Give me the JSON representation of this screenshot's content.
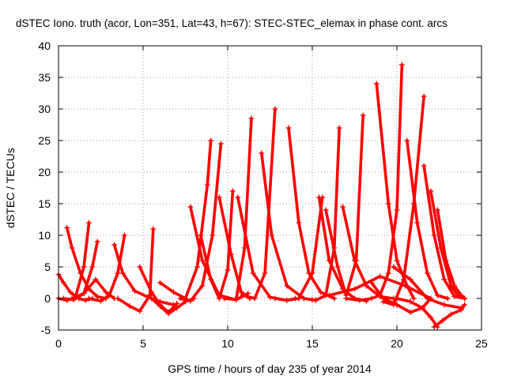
{
  "chart_data": {
    "type": "scatter",
    "title": "dSTEC Iono. truth (acor, Lon=351, Lat=43, h=67): STEC-STEC_elemax in phase cont. arcs",
    "xlabel": "GPS time / hours of day 235 of year 2014",
    "ylabel": "dSTEC  / TECUs",
    "xlim": [
      0,
      25
    ],
    "ylim": [
      -5,
      40
    ],
    "xticks": [
      0,
      5,
      10,
      15,
      20,
      25
    ],
    "yticks": [
      -5,
      0,
      5,
      10,
      15,
      20,
      25,
      30,
      35,
      40
    ],
    "grid": true,
    "marker": "plus",
    "color": "#ff0000",
    "series": [
      {
        "x": [
          0.0,
          0.3,
          0.7,
          1.2,
          1.6,
          2.0
        ],
        "y": [
          3.8,
          2.5,
          1.0,
          0.0,
          -0.3,
          0.0
        ]
      },
      {
        "x": [
          0.0,
          0.5,
          1.0,
          1.5,
          1.8
        ],
        "y": [
          0.0,
          -0.3,
          0.2,
          5.0,
          12.0
        ]
      },
      {
        "x": [
          0.5,
          0.8,
          1.3,
          1.8,
          2.3,
          2.8
        ],
        "y": [
          11.2,
          8.0,
          4.0,
          1.5,
          0.3,
          0.0
        ]
      },
      {
        "x": [
          0.3,
          0.9,
          1.5,
          2.0,
          2.3
        ],
        "y": [
          0.0,
          -0.2,
          0.8,
          5.0,
          9.0
        ]
      },
      {
        "x": [
          0.8,
          1.5,
          2.2,
          2.8,
          3.3
        ],
        "y": [
          0.0,
          0.8,
          3.0,
          1.0,
          0.0
        ]
      },
      {
        "x": [
          1.8,
          2.5,
          3.0,
          3.5,
          3.9
        ],
        "y": [
          0.0,
          -0.4,
          0.5,
          4.0,
          10.0
        ]
      },
      {
        "x": [
          3.3,
          3.8,
          4.5,
          5.3,
          6.0,
          6.8
        ],
        "y": [
          8.5,
          4.0,
          1.2,
          0.2,
          -0.5,
          -1.0
        ]
      },
      {
        "x": [
          3.5,
          4.2,
          4.8,
          5.4,
          5.6
        ],
        "y": [
          0.0,
          -1.2,
          -2.0,
          0.5,
          11.0
        ]
      },
      {
        "x": [
          4.8,
          5.5,
          6.0,
          6.5,
          7.0
        ],
        "y": [
          5.0,
          1.0,
          -1.0,
          -2.2,
          -0.8
        ]
      },
      {
        "x": [
          5.5,
          6.0,
          6.5,
          7.0,
          7.5,
          8.0
        ],
        "y": [
          0.0,
          -1.2,
          -2.4,
          -1.5,
          -0.5,
          0.0
        ]
      },
      {
        "x": [
          6.0,
          6.8,
          7.5,
          8.2,
          8.8,
          9.0
        ],
        "y": [
          2.5,
          1.0,
          0.0,
          5.0,
          18.0,
          25.0
        ]
      },
      {
        "x": [
          7.2,
          7.8,
          8.5,
          9.1,
          9.6
        ],
        "y": [
          0.0,
          -0.4,
          2.0,
          10.0,
          24.5
        ]
      },
      {
        "x": [
          7.8,
          8.5,
          9.5,
          10.5,
          11.2
        ],
        "y": [
          14.5,
          6.0,
          0.5,
          -0.2,
          0.8
        ]
      },
      {
        "x": [
          8.4,
          9.0,
          9.5,
          10.0,
          10.3
        ],
        "y": [
          10.0,
          3.0,
          0.0,
          4.5,
          17.0
        ]
      },
      {
        "x": [
          9.5,
          10.2,
          10.8,
          11.3
        ],
        "y": [
          16.0,
          7.0,
          1.0,
          0.0
        ]
      },
      {
        "x": [
          9.8,
          10.5,
          11.0,
          11.4
        ],
        "y": [
          0.0,
          -0.2,
          8.0,
          28.5
        ]
      },
      {
        "x": [
          10.6,
          11.5,
          12.5,
          13.5,
          14.0
        ],
        "y": [
          16.0,
          4.0,
          0.2,
          -0.3,
          0.0
        ]
      },
      {
        "x": [
          10.9,
          11.6,
          12.2,
          12.8
        ],
        "y": [
          0.5,
          0.0,
          4.0,
          30.0
        ]
      },
      {
        "x": [
          12.0,
          12.6,
          13.5,
          14.5,
          15.0
        ],
        "y": [
          23.0,
          10.0,
          2.0,
          0.0,
          -0.2
        ]
      },
      {
        "x": [
          12.8,
          13.5,
          14.2,
          15.0,
          15.6
        ],
        "y": [
          0.0,
          -0.3,
          0.0,
          4.0,
          16.0
        ]
      },
      {
        "x": [
          13.6,
          14.2,
          14.8,
          15.5,
          16.3
        ],
        "y": [
          27.0,
          12.0,
          4.0,
          1.0,
          0.0
        ]
      },
      {
        "x": [
          14.5,
          15.2,
          15.8,
          16.3,
          16.6
        ],
        "y": [
          0.0,
          -0.3,
          0.5,
          8.0,
          27.0
        ]
      },
      {
        "x": [
          15.4,
          16.0,
          16.8,
          17.5,
          18.2
        ],
        "y": [
          16.0,
          6.0,
          1.5,
          0.0,
          -0.4
        ]
      },
      {
        "x": [
          15.8,
          16.5,
          17.0,
          17.6,
          18.0
        ],
        "y": [
          14.0,
          5.0,
          0.5,
          6.0,
          29.0
        ]
      },
      {
        "x": [
          16.8,
          17.5,
          18.2,
          19.0,
          19.8
        ],
        "y": [
          14.5,
          6.0,
          2.0,
          0.3,
          0.0
        ]
      },
      {
        "x": [
          17.0,
          17.8,
          18.5,
          19.0,
          19.5,
          20.0,
          20.3
        ],
        "y": [
          0.0,
          -0.3,
          0.0,
          0.5,
          4.0,
          14.0,
          37.0
        ]
      },
      {
        "x": [
          18.5,
          19.2,
          20.0,
          20.8,
          21.5,
          22.0
        ],
        "y": [
          2.5,
          0.0,
          -1.0,
          -2.2,
          -1.5,
          0.0
        ]
      },
      {
        "x": [
          18.8,
          19.5,
          20.0,
          20.6,
          21.0
        ],
        "y": [
          34.0,
          15.0,
          6.0,
          2.0,
          0.0
        ]
      },
      {
        "x": [
          19.2,
          19.8,
          20.4,
          21.0,
          21.6
        ],
        "y": [
          -0.5,
          -1.0,
          3.0,
          15.0,
          32.0
        ]
      },
      {
        "x": [
          20.0,
          20.8,
          21.5,
          22.0,
          22.4
        ],
        "y": [
          0.0,
          -0.5,
          -1.5,
          -3.0,
          -4.5
        ]
      },
      {
        "x": [
          20.6,
          21.2,
          21.8,
          22.4,
          23.0
        ],
        "y": [
          25.0,
          12.0,
          4.0,
          0.5,
          0.0
        ]
      },
      {
        "x": [
          21.6,
          22.2,
          22.8,
          23.4,
          24.0
        ],
        "y": [
          21.0,
          10.0,
          3.0,
          0.3,
          0.0
        ]
      },
      {
        "x": [
          22.0,
          22.6,
          23.2,
          23.6,
          24.0
        ],
        "y": [
          17.0,
          8.0,
          2.0,
          0.5,
          0.0
        ]
      },
      {
        "x": [
          22.4,
          22.9,
          23.4,
          23.8,
          24.0
        ],
        "y": [
          14.0,
          6.0,
          2.0,
          0.5,
          0.0
        ]
      },
      {
        "x": [
          22.2,
          22.7,
          23.2,
          23.8,
          24.0
        ],
        "y": [
          -4.5,
          -3.5,
          -2.5,
          -1.8,
          -1.0
        ]
      },
      {
        "x": [
          19.8,
          20.8,
          21.8,
          22.8,
          23.8
        ],
        "y": [
          5.0,
          3.0,
          0.0,
          -1.0,
          -1.5
        ]
      },
      {
        "x": [
          16.0,
          17.5,
          19.0,
          20.5,
          22.0
        ],
        "y": [
          0.5,
          1.5,
          3.5,
          2.0,
          0.0
        ]
      }
    ]
  }
}
